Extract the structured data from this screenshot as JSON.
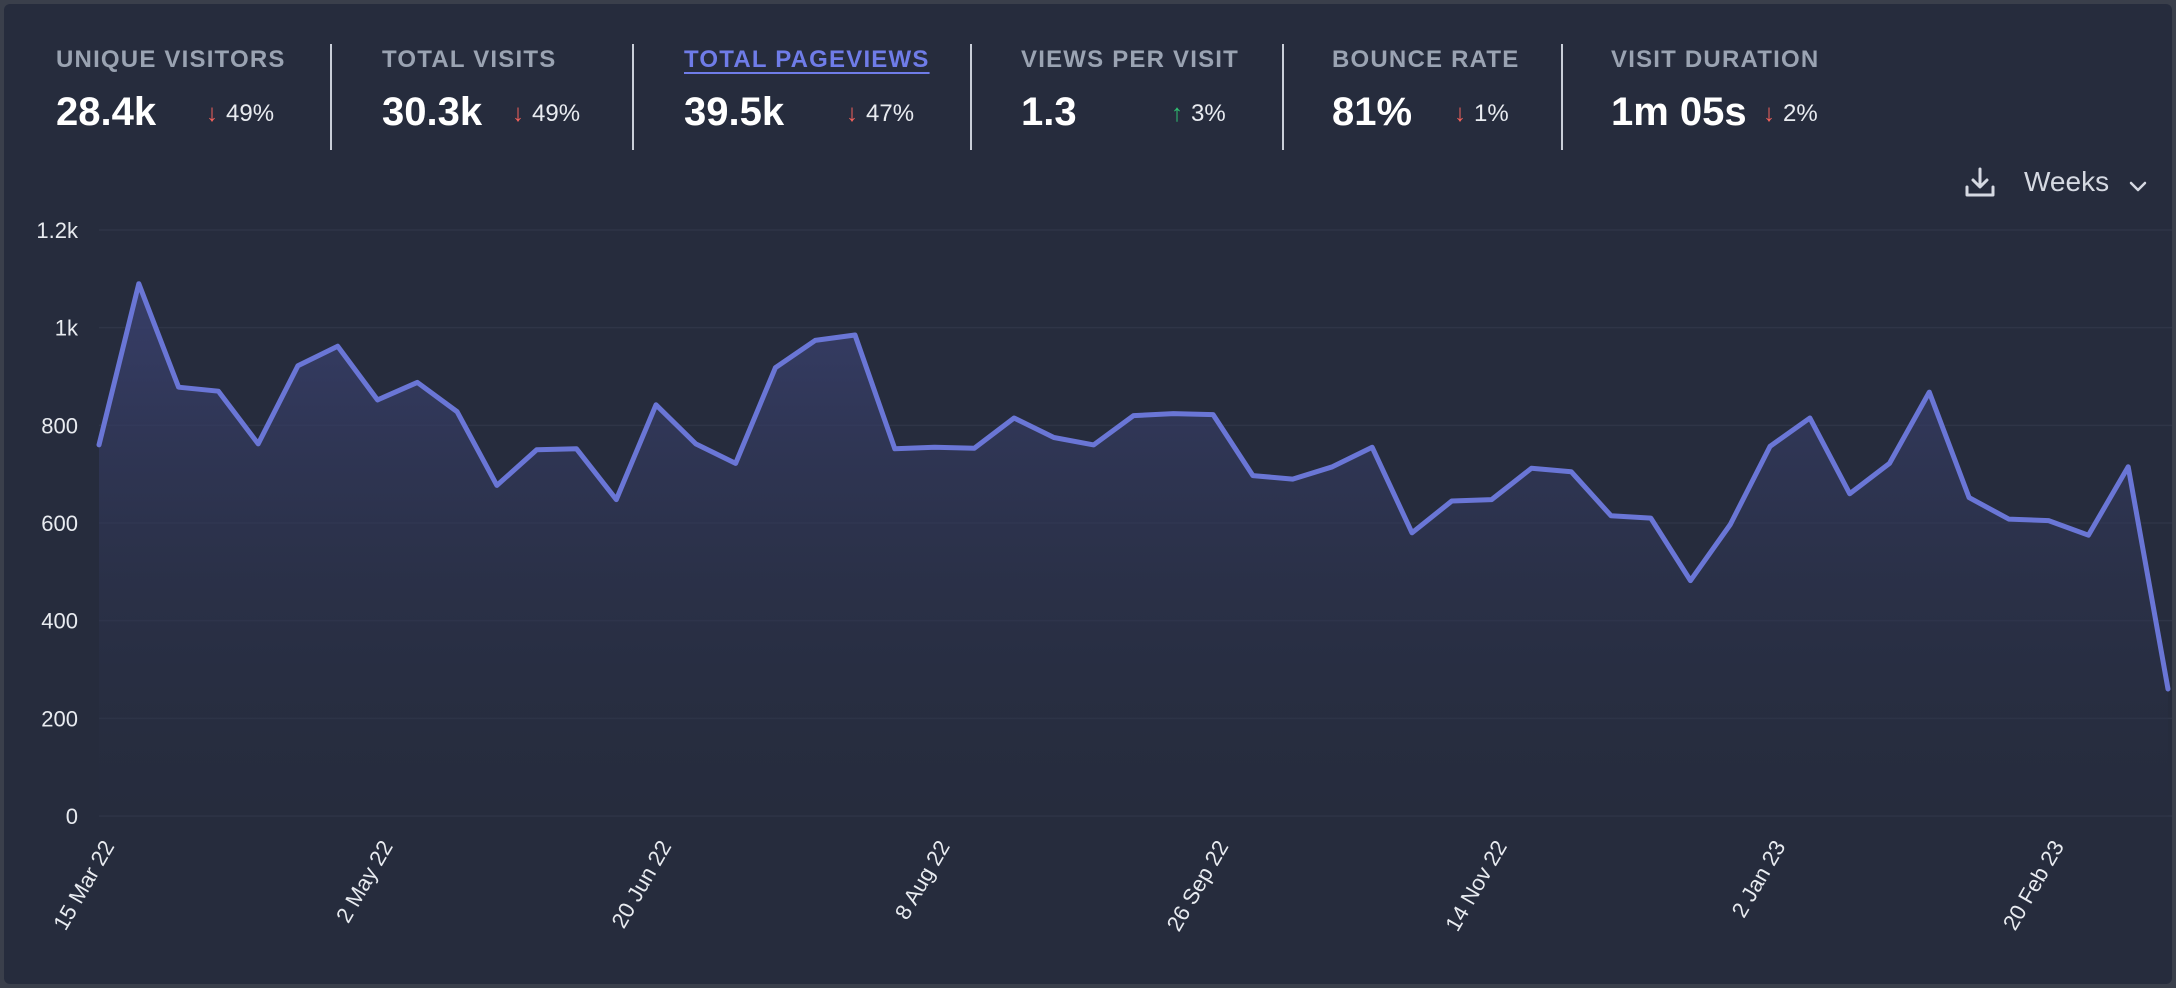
{
  "metrics": [
    {
      "label": "UNIQUE VISITORS",
      "value": "28.4k",
      "change": "49%",
      "direction": "down",
      "active": false
    },
    {
      "label": "TOTAL VISITS",
      "value": "30.3k",
      "change": "49%",
      "direction": "down",
      "active": false
    },
    {
      "label": "TOTAL PAGEVIEWS",
      "value": "39.5k",
      "change": "47%",
      "direction": "down",
      "active": true
    },
    {
      "label": "VIEWS PER VISIT",
      "value": "1.3",
      "change": "3%",
      "direction": "up",
      "active": false
    },
    {
      "label": "BOUNCE RATE",
      "value": "81%",
      "change": "1%",
      "direction": "down",
      "active": false
    },
    {
      "label": "VISIT DURATION",
      "value": "1m 05s",
      "change": "2%",
      "direction": "down",
      "active": false
    }
  ],
  "toolbar": {
    "download_icon": "download-icon",
    "interval_label": "Weeks",
    "interval_icon": "chevron-down-icon"
  },
  "colors": {
    "background": "#262c3d",
    "line": "#6a76d6",
    "grid": "#2f3547",
    "down": "#f0605a",
    "up": "#2fbf71",
    "active_label": "#6f7ce8"
  },
  "chart_data": {
    "type": "area",
    "series": [
      {
        "values": [
          760,
          1090,
          878,
          870,
          762,
          922,
          962,
          852,
          888,
          828,
          677,
          750,
          752,
          648,
          842,
          762,
          722,
          918,
          974,
          985,
          752,
          755,
          753,
          815,
          775,
          760,
          820,
          824,
          822,
          697,
          690,
          715,
          755,
          580,
          645,
          648,
          712,
          705,
          615,
          610,
          482,
          597,
          757,
          815,
          660,
          722,
          868,
          652,
          608,
          605,
          575,
          715,
          260
        ]
      }
    ],
    "xtick_labels": [
      "15 Mar 22",
      "2 May 22",
      "20 Jun 22",
      "8 Aug 22",
      "26 Sep 22",
      "14 Nov 22",
      "2 Jan 23",
      "20 Feb 23"
    ],
    "ytick_labels": [
      "0",
      "200",
      "400",
      "600",
      "800",
      "1k",
      "1.2k"
    ],
    "ytick_values": [
      0,
      200,
      400,
      600,
      800,
      1000,
      1200
    ],
    "ylim": [
      0,
      1200
    ],
    "grid": true,
    "legend": "none"
  }
}
